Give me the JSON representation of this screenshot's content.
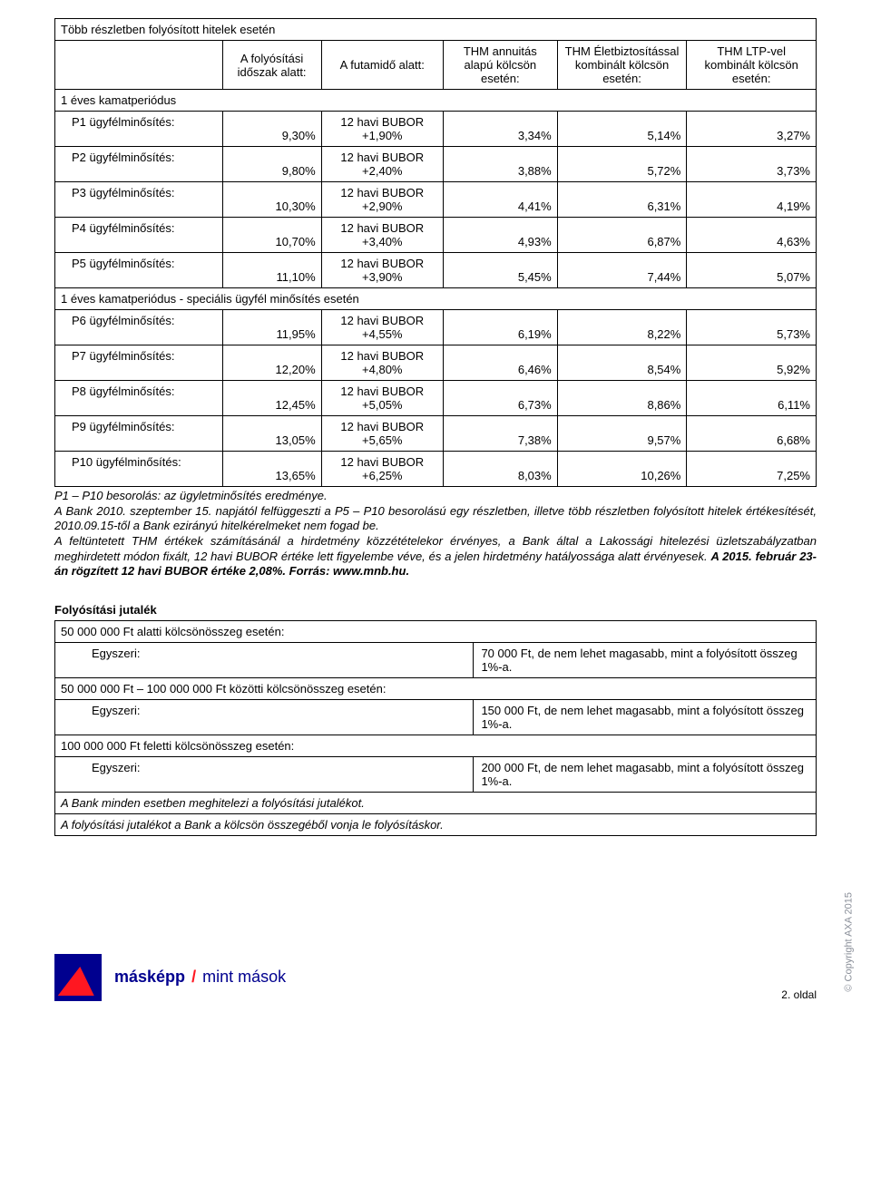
{
  "table": {
    "title": "Több részletben folyósított hitelek esetén",
    "headers": {
      "col_label": "",
      "col_period": "A folyósítási időszak alatt:",
      "col_term": "A futamidő alatt:",
      "col_thm1": "THM annuitás alapú kölcsön esetén:",
      "col_thm2": "THM Életbiztosítással kombinált kölcsön esetén:",
      "col_thm3": "THM LTP-vel kombinált kölcsön esetén:"
    },
    "group1_title": "1 éves kamatperiódus",
    "group2_title": "1 éves kamatperiódus - speciális ügyfél minősítés esetén",
    "rows_g1": [
      {
        "label": "P1 ügyfélminősítés:",
        "period": "9,30%",
        "term": "12 havi BUBOR +1,90%",
        "v1": "3,34%",
        "v2": "5,14%",
        "v3": "3,27%"
      },
      {
        "label": "P2 ügyfélminősítés:",
        "period": "9,80%",
        "term": "12 havi BUBOR +2,40%",
        "v1": "3,88%",
        "v2": "5,72%",
        "v3": "3,73%"
      },
      {
        "label": "P3 ügyfélminősítés:",
        "period": "10,30%",
        "term": "12 havi BUBOR +2,90%",
        "v1": "4,41%",
        "v2": "6,31%",
        "v3": "4,19%"
      },
      {
        "label": "P4 ügyfélminősítés:",
        "period": "10,70%",
        "term": "12 havi BUBOR +3,40%",
        "v1": "4,93%",
        "v2": "6,87%",
        "v3": "4,63%"
      },
      {
        "label": "P5 ügyfélminősítés:",
        "period": "11,10%",
        "term": "12 havi BUBOR +3,90%",
        "v1": "5,45%",
        "v2": "7,44%",
        "v3": "5,07%"
      }
    ],
    "rows_g2": [
      {
        "label": "P6 ügyfélminősítés:",
        "period": "11,95%",
        "term": "12 havi BUBOR +4,55%",
        "v1": "6,19%",
        "v2": "8,22%",
        "v3": "5,73%"
      },
      {
        "label": "P7 ügyfélminősítés:",
        "period": "12,20%",
        "term": "12 havi BUBOR +4,80%",
        "v1": "6,46%",
        "v2": "8,54%",
        "v3": "5,92%"
      },
      {
        "label": "P8 ügyfélminősítés:",
        "period": "12,45%",
        "term": "12 havi BUBOR +5,05%",
        "v1": "6,73%",
        "v2": "8,86%",
        "v3": "6,11%"
      },
      {
        "label": "P9 ügyfélminősítés:",
        "period": "13,05%",
        "term": "12 havi BUBOR +5,65%",
        "v1": "7,38%",
        "v2": "9,57%",
        "v3": "6,68%"
      },
      {
        "label": "P10 ügyfélminősítés:",
        "period": "13,65%",
        "term": "12 havi BUBOR +6,25%",
        "v1": "8,03%",
        "v2": "10,26%",
        "v3": "7,25%"
      }
    ]
  },
  "notes": {
    "n1": "P1 – P10 besorolás: az ügyletminősítés eredménye.",
    "n2": "A Bank 2010. szeptember 15. napjától felfüggeszti a P5 – P10 besorolású egy részletben, illetve több részletben folyósított hitelek értékesítését, 2010.09.15-től a Bank ezirányú hitelkérelmeket nem fogad be.",
    "n3a": "A feltüntetett THM értékek számításánál a hirdetmény közzétételekor érvényes, a Bank által a Lakossági hitelezési üzletszabályzatban meghirdetett módon fixált, 12 havi BUBOR értéke lett figyelembe véve, és a jelen hirdetmény hatályossága alatt érvényesek. ",
    "n3b": "A 2015. február 23-án rögzített 12 havi BUBOR értéke 2,08%. Forrás: www.mnb.hu."
  },
  "fees": {
    "title": "Folyósítási jutalék",
    "rows": [
      {
        "full": "50 000 000 Ft alatti kölcsönösszeg esetén:"
      },
      {
        "left": "Egyszeri:",
        "right": "70 000 Ft, de nem lehet magasabb, mint a folyósított összeg 1%-a."
      },
      {
        "full": "50 000 000 Ft – 100 000 000 Ft közötti kölcsönösszeg esetén:"
      },
      {
        "left": "Egyszeri:",
        "right": "150 000 Ft, de nem lehet magasabb, mint a folyósított összeg 1%-a."
      },
      {
        "full": "100 000 000 Ft feletti kölcsönösszeg esetén:"
      },
      {
        "left": "Egyszeri:",
        "right": "200 000 Ft, de nem lehet magasabb, mint a folyósított összeg 1%-a."
      }
    ],
    "note1": "A Bank minden esetben meghitelezi a folyósítási jutalékot.",
    "note2": "A folyósítási jutalékot a Bank a kölcsön összegéből vonja le folyósításkor."
  },
  "footer": {
    "brand1": "másképp",
    "brand2": "mint mások",
    "page": "2. oldal",
    "copyright": "© Copyright  AXA 2015"
  },
  "colors": {
    "border": "#000000",
    "brand_blue": "#00008f",
    "brand_red": "#ff1721",
    "muted": "#8a8f99"
  }
}
